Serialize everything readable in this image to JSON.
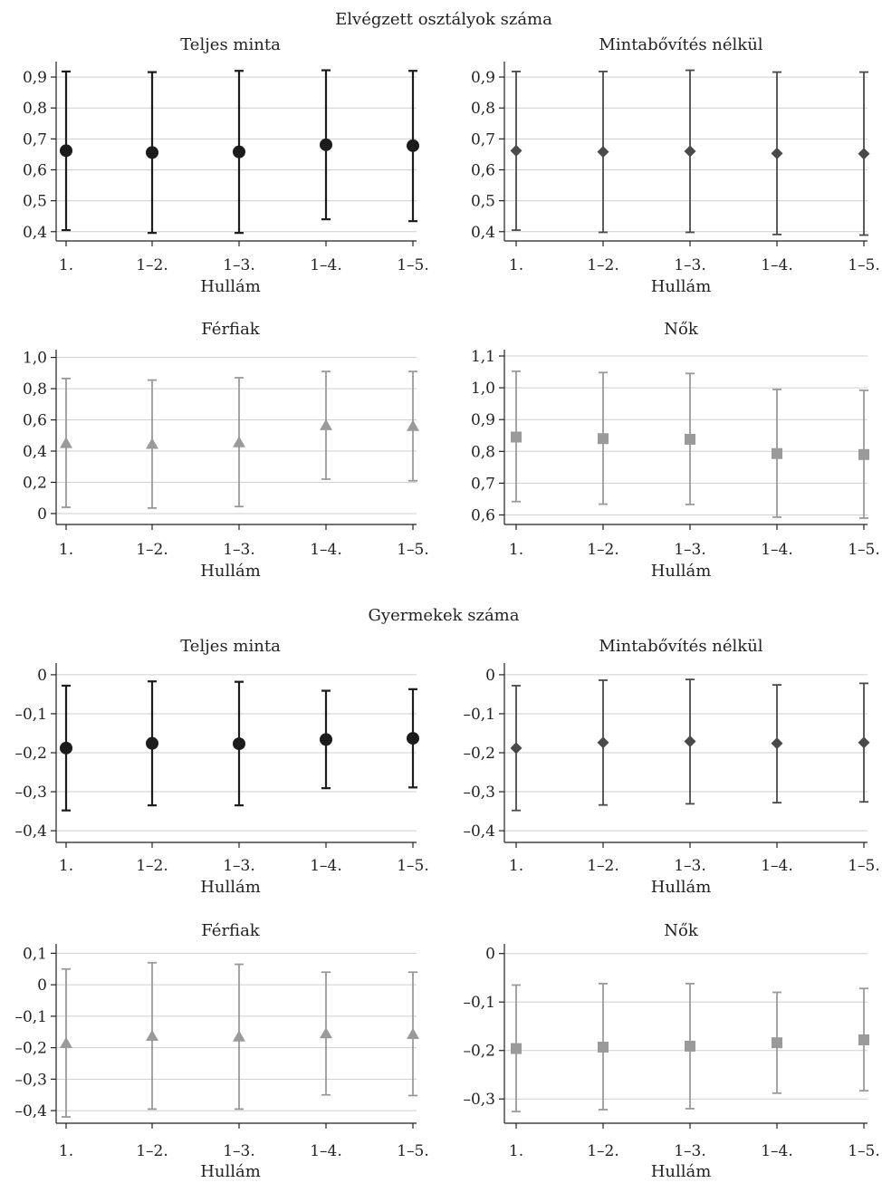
{
  "sections": [
    {
      "title": "Elvégzett osztályok száma"
    },
    {
      "title": "Gyermekek száma"
    }
  ],
  "chart_data": [
    {
      "type": "scatter",
      "subtype": "errorbar",
      "title": "Teljes minta",
      "xlabel": "Hullám",
      "ylabel": "",
      "categories": [
        "1.",
        "1–2.",
        "1–3.",
        "1–4.",
        "1–5."
      ],
      "ylim": [
        0.37,
        0.95
      ],
      "yticks": [
        0.4,
        0.5,
        0.6,
        0.7,
        0.8,
        0.9
      ],
      "ytick_labels": [
        "0,4",
        "0,5",
        "0,6",
        "0,7",
        "0,8",
        "0,9"
      ],
      "marker": "circle",
      "color": "#1c1c1c",
      "values": [
        0.662,
        0.656,
        0.658,
        0.681,
        0.678
      ],
      "lower": [
        0.405,
        0.396,
        0.396,
        0.44,
        0.434
      ],
      "upper": [
        0.918,
        0.916,
        0.92,
        0.922,
        0.92
      ],
      "grid": true
    },
    {
      "type": "scatter",
      "subtype": "errorbar",
      "title": "Mintabővítés nélkül",
      "xlabel": "Hullám",
      "ylabel": "",
      "categories": [
        "1.",
        "1–2.",
        "1–3.",
        "1–4.",
        "1–5."
      ],
      "ylim": [
        0.37,
        0.95
      ],
      "yticks": [
        0.4,
        0.5,
        0.6,
        0.7,
        0.8,
        0.9
      ],
      "ytick_labels": [
        "0,4",
        "0,5",
        "0,6",
        "0,7",
        "0,8",
        "0,9"
      ],
      "marker": "diamond",
      "color": "#4a4a4a",
      "values": [
        0.662,
        0.658,
        0.66,
        0.653,
        0.652
      ],
      "lower": [
        0.405,
        0.398,
        0.398,
        0.391,
        0.389
      ],
      "upper": [
        0.918,
        0.918,
        0.922,
        0.916,
        0.916
      ],
      "grid": true
    },
    {
      "type": "scatter",
      "subtype": "errorbar",
      "title": "Férfiak",
      "xlabel": "Hullám",
      "ylabel": "",
      "categories": [
        "1.",
        "1–2.",
        "1–3.",
        "1–4.",
        "1–5."
      ],
      "ylim": [
        -0.07,
        1.05
      ],
      "yticks": [
        0,
        0.2,
        0.4,
        0.6,
        0.8,
        1.0
      ],
      "ytick_labels": [
        "0",
        "0,2",
        "0,4",
        "0,6",
        "0,8",
        "1,0"
      ],
      "marker": "triangle",
      "color": "#9a9a9a",
      "values": [
        0.45,
        0.445,
        0.455,
        0.565,
        0.56
      ],
      "lower": [
        0.04,
        0.035,
        0.045,
        0.22,
        0.21
      ],
      "upper": [
        0.865,
        0.855,
        0.87,
        0.91,
        0.91
      ],
      "grid": true
    },
    {
      "type": "scatter",
      "subtype": "errorbar",
      "title": "Nők",
      "xlabel": "Hullám",
      "ylabel": "",
      "categories": [
        "1.",
        "1–2.",
        "1–3.",
        "1–4.",
        "1–5."
      ],
      "ylim": [
        0.57,
        1.12
      ],
      "yticks": [
        0.6,
        0.7,
        0.8,
        0.9,
        1.0,
        1.1
      ],
      "ytick_labels": [
        "0,6",
        "0,7",
        "0,8",
        "0,9",
        "1,0",
        "1,1"
      ],
      "marker": "square",
      "color": "#9a9a9a",
      "values": [
        0.845,
        0.84,
        0.838,
        0.793,
        0.79
      ],
      "lower": [
        0.642,
        0.634,
        0.633,
        0.593,
        0.59
      ],
      "upper": [
        1.052,
        1.048,
        1.045,
        0.995,
        0.992
      ],
      "grid": true
    },
    {
      "type": "scatter",
      "subtype": "errorbar",
      "title": "Teljes minta",
      "xlabel": "Hullám",
      "ylabel": "",
      "categories": [
        "1.",
        "1–2.",
        "1–3.",
        "1–4.",
        "1–5."
      ],
      "ylim": [
        -0.43,
        0.03
      ],
      "yticks": [
        -0.4,
        -0.3,
        -0.2,
        -0.1,
        0
      ],
      "ytick_labels": [
        "–0,4",
        "–0,3",
        "–0,2",
        "–0,1",
        "0"
      ],
      "marker": "circle",
      "color": "#1c1c1c",
      "values": [
        -0.188,
        -0.176,
        -0.177,
        -0.166,
        -0.163
      ],
      "lower": [
        -0.348,
        -0.335,
        -0.335,
        -0.291,
        -0.289
      ],
      "upper": [
        -0.028,
        -0.017,
        -0.018,
        -0.041,
        -0.037
      ],
      "grid": true
    },
    {
      "type": "scatter",
      "subtype": "errorbar",
      "title": "Mintabővítés nélkül",
      "xlabel": "Hullám",
      "ylabel": "",
      "categories": [
        "1.",
        "1–2.",
        "1–3.",
        "1–4.",
        "1–5."
      ],
      "ylim": [
        -0.43,
        0.03
      ],
      "yticks": [
        -0.4,
        -0.3,
        -0.2,
        -0.1,
        0
      ],
      "ytick_labels": [
        "–0,4",
        "–0,3",
        "–0,2",
        "–0,1",
        "0"
      ],
      "marker": "diamond",
      "color": "#4a4a4a",
      "values": [
        -0.188,
        -0.174,
        -0.171,
        -0.176,
        -0.174
      ],
      "lower": [
        -0.348,
        -0.334,
        -0.331,
        -0.328,
        -0.326
      ],
      "upper": [
        -0.028,
        -0.014,
        -0.012,
        -0.026,
        -0.022
      ],
      "grid": true
    },
    {
      "type": "scatter",
      "subtype": "errorbar",
      "title": "Férfiak",
      "xlabel": "Hullám",
      "ylabel": "",
      "categories": [
        "1.",
        "1–2.",
        "1–3.",
        "1–4.",
        "1–5."
      ],
      "ylim": [
        -0.44,
        0.13
      ],
      "yticks": [
        -0.4,
        -0.3,
        -0.2,
        -0.1,
        0,
        0.1
      ],
      "ytick_labels": [
        "–0,4",
        "–0,3",
        "–0,2",
        "–0,1",
        "0",
        "0,1"
      ],
      "marker": "triangle",
      "color": "#9a9a9a",
      "values": [
        -0.186,
        -0.163,
        -0.165,
        -0.155,
        -0.157
      ],
      "lower": [
        -0.42,
        -0.395,
        -0.395,
        -0.35,
        -0.352
      ],
      "upper": [
        0.05,
        0.07,
        0.065,
        0.04,
        0.04
      ],
      "grid": true
    },
    {
      "type": "scatter",
      "subtype": "errorbar",
      "title": "Nők",
      "xlabel": "Hullám",
      "ylabel": "",
      "categories": [
        "1.",
        "1–2.",
        "1–3.",
        "1–4.",
        "1–5."
      ],
      "ylim": [
        -0.35,
        0.02
      ],
      "yticks": [
        -0.3,
        -0.2,
        -0.1,
        0
      ],
      "ytick_labels": [
        "–0,3",
        "–0,2",
        "–0,1",
        "0"
      ],
      "marker": "square",
      "color": "#9a9a9a",
      "values": [
        -0.196,
        -0.193,
        -0.191,
        -0.184,
        -0.178
      ],
      "lower": [
        -0.326,
        -0.322,
        -0.32,
        -0.288,
        -0.283
      ],
      "upper": [
        -0.065,
        -0.062,
        -0.062,
        -0.08,
        -0.072
      ],
      "grid": true
    }
  ]
}
